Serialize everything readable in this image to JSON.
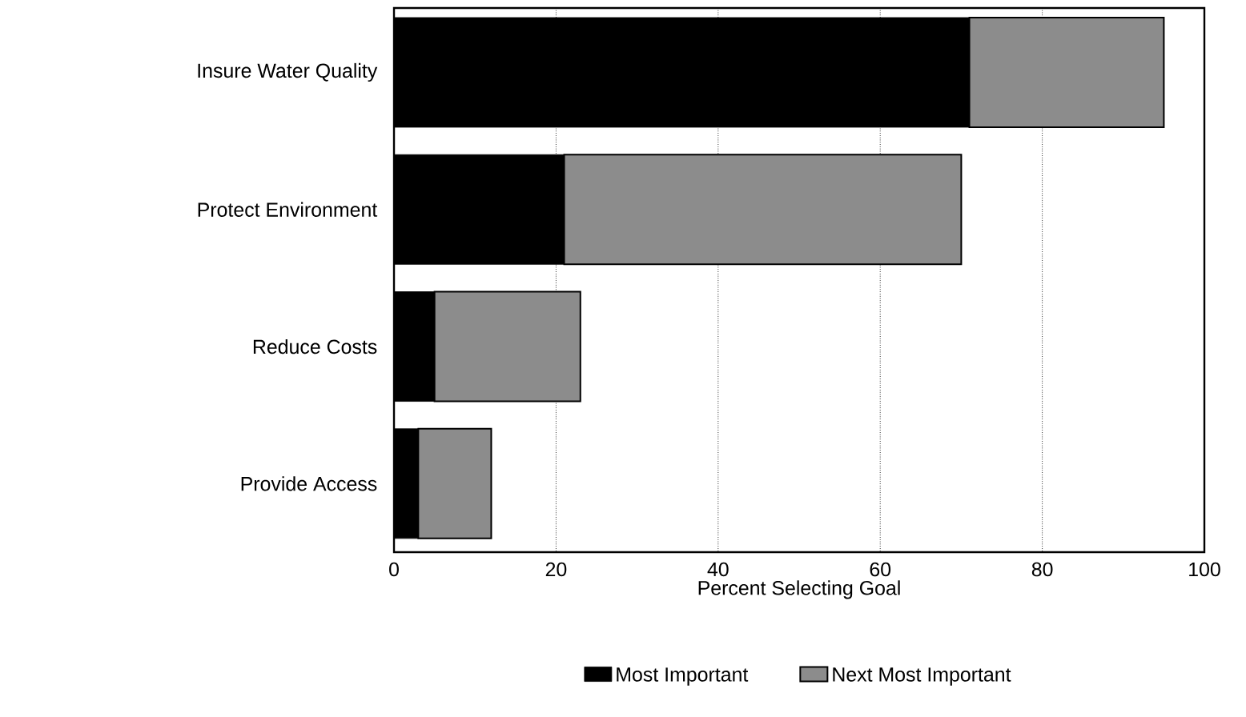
{
  "chart_data": {
    "type": "bar",
    "orientation": "horizontal",
    "stacked": true,
    "categories": [
      "Insure Water Quality",
      "Protect Environment",
      "Reduce Costs",
      "Provide Access"
    ],
    "series": [
      {
        "name": "Most Important",
        "color": "#000000",
        "values": [
          71,
          21,
          5,
          3
        ]
      },
      {
        "name": "Next Most Important",
        "color": "#8c8c8c",
        "values": [
          24,
          49,
          18,
          9
        ]
      }
    ],
    "xlabel": "Percent Selecting Goal",
    "xlim": [
      0,
      100
    ],
    "xticks": [
      0,
      20,
      40,
      60,
      80,
      100
    ],
    "grid": "x",
    "legend": "bottom"
  }
}
